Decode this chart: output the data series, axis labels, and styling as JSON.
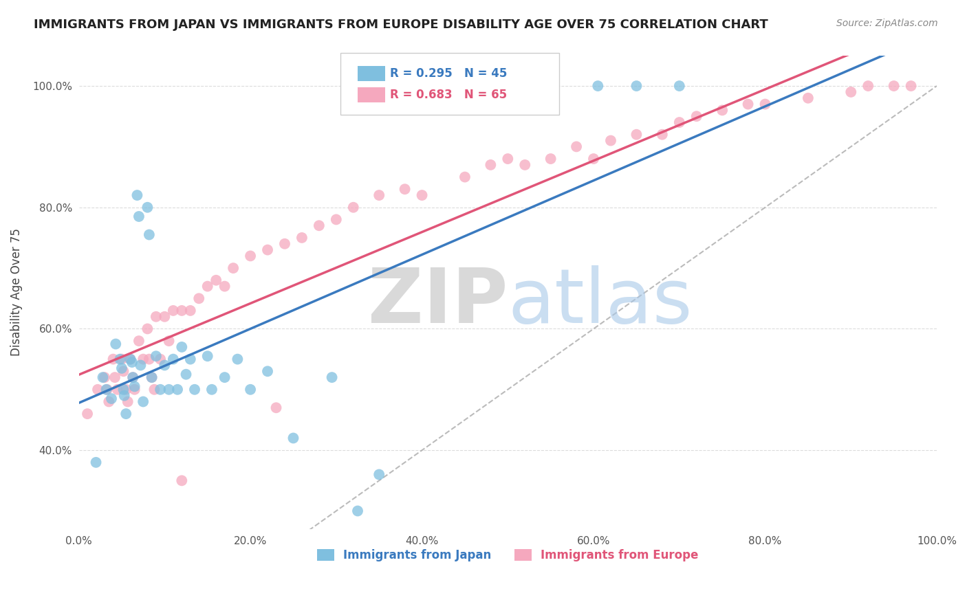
{
  "title": "IMMIGRANTS FROM JAPAN VS IMMIGRANTS FROM EUROPE DISABILITY AGE OVER 75 CORRELATION CHART",
  "source": "Source: ZipAtlas.com",
  "ylabel": "Disability Age Over 75",
  "legend_japan": "Immigrants from Japan",
  "legend_europe": "Immigrants from Europe",
  "R_japan": 0.295,
  "N_japan": 45,
  "R_europe": 0.683,
  "N_europe": 65,
  "color_japan": "#7fbfdf",
  "color_europe": "#f5a8be",
  "color_japan_line": "#3a7abf",
  "color_europe_line": "#e05578",
  "background": "#ffffff",
  "grid_color": "#cccccc",
  "japan_x": [
    0.02,
    0.028,
    0.032,
    0.038,
    0.043,
    0.048,
    0.05,
    0.052,
    0.053,
    0.055,
    0.06,
    0.062,
    0.063,
    0.065,
    0.068,
    0.07,
    0.072,
    0.075,
    0.08,
    0.082,
    0.085,
    0.09,
    0.095,
    0.1,
    0.105,
    0.11,
    0.115,
    0.12,
    0.125,
    0.13,
    0.135,
    0.15,
    0.155,
    0.17,
    0.185,
    0.2,
    0.22,
    0.25,
    0.295,
    0.325,
    0.35,
    0.55,
    0.605,
    0.65,
    0.7
  ],
  "japan_y": [
    0.38,
    0.52,
    0.5,
    0.485,
    0.575,
    0.55,
    0.535,
    0.5,
    0.49,
    0.46,
    0.55,
    0.545,
    0.52,
    0.505,
    0.82,
    0.785,
    0.54,
    0.48,
    0.8,
    0.755,
    0.52,
    0.555,
    0.5,
    0.54,
    0.5,
    0.55,
    0.5,
    0.57,
    0.525,
    0.55,
    0.5,
    0.555,
    0.5,
    0.52,
    0.55,
    0.5,
    0.53,
    0.42,
    0.52,
    0.3,
    0.36,
    1.0,
    1.0,
    1.0,
    1.0
  ],
  "europe_x": [
    0.01,
    0.022,
    0.03,
    0.033,
    0.035,
    0.04,
    0.042,
    0.045,
    0.05,
    0.052,
    0.055,
    0.057,
    0.06,
    0.063,
    0.065,
    0.07,
    0.075,
    0.08,
    0.082,
    0.085,
    0.088,
    0.09,
    0.095,
    0.1,
    0.105,
    0.11,
    0.12,
    0.13,
    0.14,
    0.15,
    0.16,
    0.17,
    0.18,
    0.2,
    0.22,
    0.24,
    0.26,
    0.28,
    0.3,
    0.32,
    0.35,
    0.38,
    0.4,
    0.45,
    0.48,
    0.5,
    0.52,
    0.55,
    0.58,
    0.6,
    0.62,
    0.65,
    0.68,
    0.7,
    0.72,
    0.75,
    0.78,
    0.8,
    0.85,
    0.9,
    0.92,
    0.95,
    0.97,
    0.23,
    0.12
  ],
  "europe_y": [
    0.46,
    0.5,
    0.52,
    0.5,
    0.48,
    0.55,
    0.52,
    0.5,
    0.55,
    0.53,
    0.5,
    0.48,
    0.55,
    0.52,
    0.5,
    0.58,
    0.55,
    0.6,
    0.55,
    0.52,
    0.5,
    0.62,
    0.55,
    0.62,
    0.58,
    0.63,
    0.63,
    0.63,
    0.65,
    0.67,
    0.68,
    0.67,
    0.7,
    0.72,
    0.73,
    0.74,
    0.75,
    0.77,
    0.78,
    0.8,
    0.82,
    0.83,
    0.82,
    0.85,
    0.87,
    0.88,
    0.87,
    0.88,
    0.9,
    0.88,
    0.91,
    0.92,
    0.92,
    0.94,
    0.95,
    0.96,
    0.97,
    0.97,
    0.98,
    0.99,
    1.0,
    1.0,
    1.0,
    0.47,
    0.35
  ],
  "yticks": [
    0.4,
    0.6,
    0.8,
    1.0
  ],
  "ytick_labels": [
    "40.0%",
    "60.0%",
    "80.0%",
    "100.0%"
  ],
  "xticks": [
    0.0,
    0.2,
    0.4,
    0.6,
    0.8,
    1.0
  ],
  "xtick_labels": [
    "0.0%",
    "20.0%",
    "40.0%",
    "60.0%",
    "80.0%",
    "100.0%"
  ],
  "ymin": 0.27,
  "ymax": 1.05
}
